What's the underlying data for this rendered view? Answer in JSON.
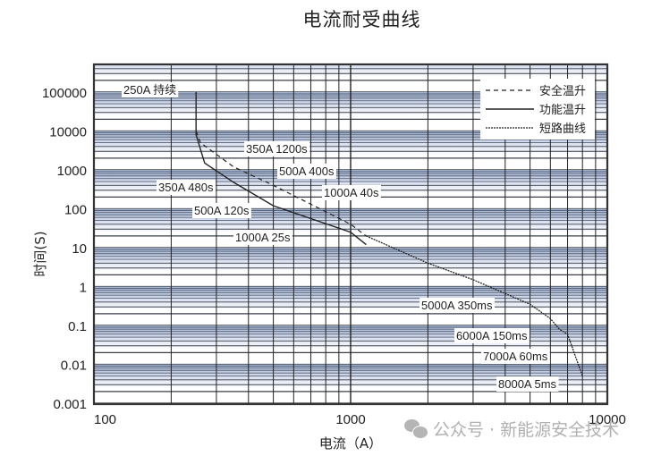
{
  "chart_data": {
    "type": "line",
    "title": "电流耐受曲线",
    "xlabel": "电流（A）",
    "ylabel": "时间(S)",
    "xscale": "log",
    "yscale": "log",
    "xlim": [
      100,
      10000
    ],
    "ylim": [
      0.001,
      500000
    ],
    "grid": true,
    "x_ticks": [
      "100",
      "1000",
      "10000"
    ],
    "y_ticks": [
      "100000",
      "10000",
      "1000",
      "100",
      "10",
      "1",
      "0.1",
      "0.01",
      "0.001"
    ],
    "legend_position": "upper right",
    "series": [
      {
        "name": "安全温升",
        "style": "dashed",
        "x": [
          250,
          260,
          350,
          500,
          1000,
          1150
        ],
        "y": [
          10000,
          5000,
          1200,
          400,
          40,
          20
        ]
      },
      {
        "name": "功能温升",
        "style": "solid",
        "x": [
          250,
          250,
          270,
          350,
          500,
          1000,
          1150
        ],
        "y": [
          100000,
          8000,
          1500,
          480,
          120,
          25,
          12
        ]
      },
      {
        "name": "短路曲线",
        "style": "dash-dot",
        "x": [
          1150,
          2000,
          3000,
          5000,
          6000,
          6500,
          7000,
          8000
        ],
        "y": [
          20,
          4,
          1.5,
          0.35,
          0.15,
          0.08,
          0.06,
          0.005
        ]
      }
    ],
    "annotations": [
      {
        "text": "250A 持续",
        "x": 250,
        "y": "continuous"
      },
      {
        "text": "350A 1200s",
        "x": 350,
        "y": 1200
      },
      {
        "text": "500A 400s",
        "x": 500,
        "y": 400
      },
      {
        "text": "1000A 40s",
        "x": 1000,
        "y": 40
      },
      {
        "text": "350A 480s",
        "x": 350,
        "y": 480
      },
      {
        "text": "500A 120s",
        "x": 500,
        "y": 120
      },
      {
        "text": "1000A 25s",
        "x": 1000,
        "y": 25
      },
      {
        "text": "5000A 350ms",
        "x": 5000,
        "y": 0.35
      },
      {
        "text": "6000A 150ms",
        "x": 6000,
        "y": 0.15
      },
      {
        "text": "7000A 60ms",
        "x": 7000,
        "y": 0.06
      },
      {
        "text": "8000A 5ms",
        "x": 8000,
        "y": 0.005
      }
    ]
  },
  "legend": [
    "安全温升",
    "功能温升",
    "短路曲线"
  ],
  "watermark": "公众号 · 新能源安全技术"
}
